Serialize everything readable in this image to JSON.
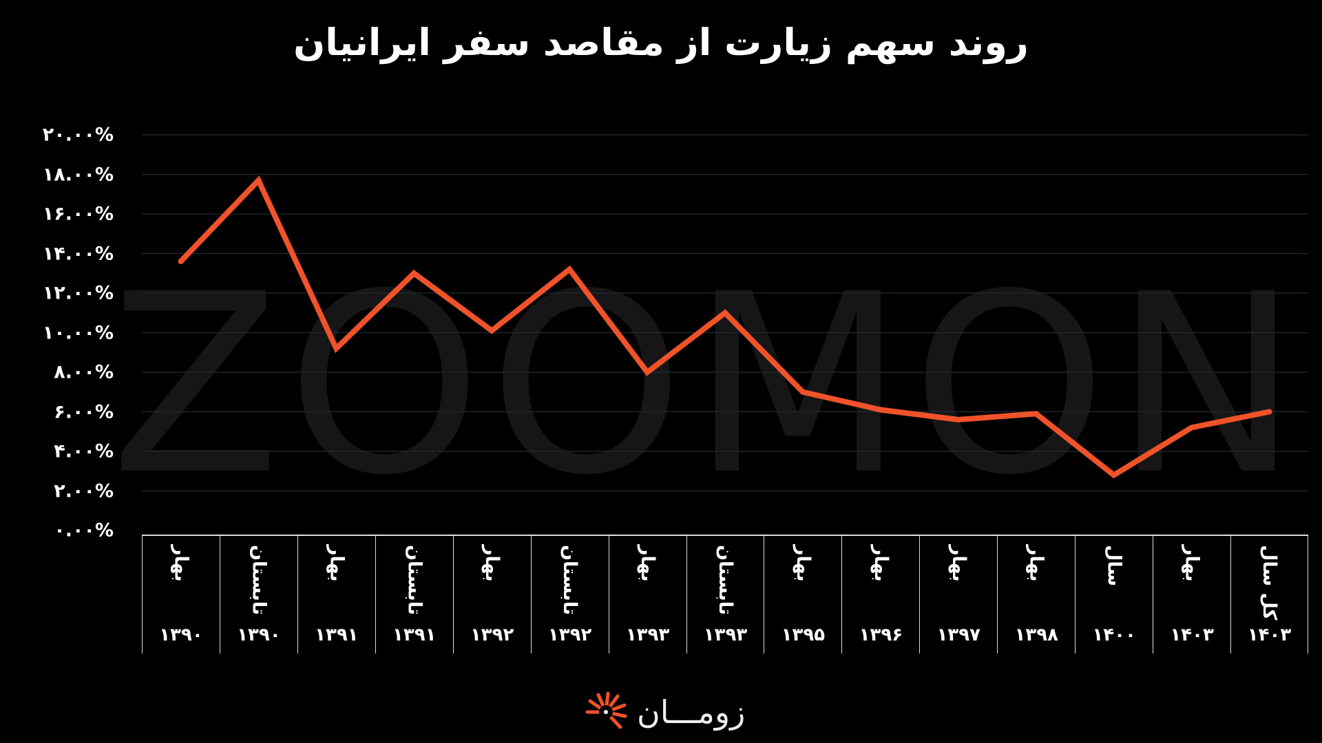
{
  "chart_data": {
    "type": "line",
    "title": "روند سهم زیارت از مقاصد سفر ایرانیان",
    "categories": [
      {
        "season": "بهار",
        "year": "۱۳۹۰"
      },
      {
        "season": "تابستان",
        "year": "۱۳۹۰"
      },
      {
        "season": "بهار",
        "year": "۱۳۹۱"
      },
      {
        "season": "تابستان",
        "year": "۱۳۹۱"
      },
      {
        "season": "بهار",
        "year": "۱۳۹۲"
      },
      {
        "season": "تابستان",
        "year": "۱۳۹۲"
      },
      {
        "season": "بهار",
        "year": "۱۳۹۳"
      },
      {
        "season": "تابستان",
        "year": "۱۳۹۳"
      },
      {
        "season": "بهار",
        "year": "۱۳۹۵"
      },
      {
        "season": "بهار",
        "year": "۱۳۹۶"
      },
      {
        "season": "بهار",
        "year": "۱۳۹۷"
      },
      {
        "season": "بهار",
        "year": "۱۳۹۸"
      },
      {
        "season": "سال",
        "year": "۱۴۰۰"
      },
      {
        "season": "بهار",
        "year": "۱۴۰۳"
      },
      {
        "season": "کل سال",
        "year": "۱۴۰۳"
      }
    ],
    "values": [
      13.6,
      17.7,
      9.2,
      13.0,
      10.1,
      13.2,
      8.0,
      11.0,
      7.0,
      6.1,
      5.6,
      5.9,
      2.8,
      5.2,
      6.0
    ],
    "ylim": [
      0,
      20
    ],
    "yticks": [
      "۰.۰۰%",
      "۲.۰۰%",
      "۴.۰۰%",
      "۶.۰۰%",
      "۸.۰۰%",
      "۱۰.۰۰%",
      "۱۲.۰۰%",
      "۱۴.۰۰%",
      "۱۶.۰۰%",
      "۱۸.۰۰%",
      "۲۰.۰۰%"
    ],
    "grid": true,
    "line_color": "#f0522a"
  },
  "watermark": "ZOOMON",
  "logo": "زومـــان"
}
